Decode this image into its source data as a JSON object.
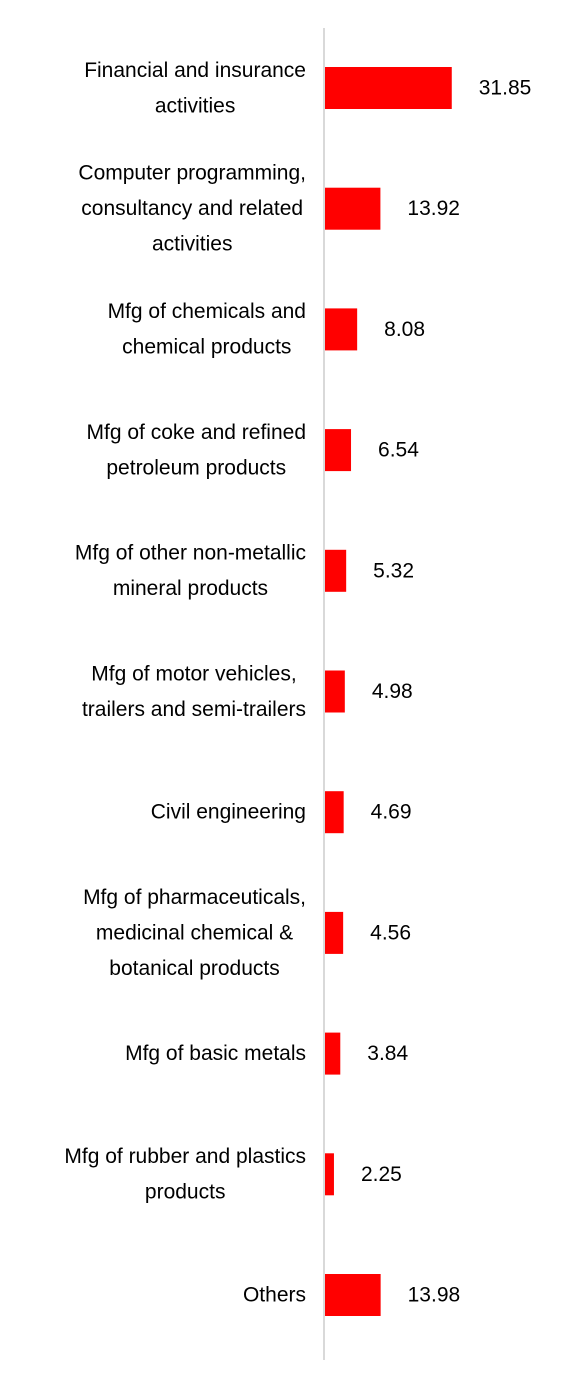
{
  "chart_data": {
    "type": "bar",
    "orientation": "horizontal",
    "title": "",
    "xlabel": "",
    "ylabel": "",
    "grid": false,
    "legend": "none",
    "bar_color": "#ff0000",
    "axis_color": "#d9d9d9",
    "xlim": [
      0,
      32
    ],
    "categories": [
      [
        "Financial and insurance",
        "activities"
      ],
      [
        "Computer programming,",
        "consultancy and related",
        "activities"
      ],
      [
        "Mfg of chemicals and",
        "chemical products"
      ],
      [
        "Mfg of coke and refined",
        "petroleum products"
      ],
      [
        "Mfg of other non-metallic",
        "mineral products"
      ],
      [
        "Mfg of motor vehicles,",
        "trailers and semi-trailers"
      ],
      [
        "Civil engineering"
      ],
      [
        "Mfg of pharmaceuticals,",
        "medicinal chemical &",
        "botanical products"
      ],
      [
        "Mfg of basic metals"
      ],
      [
        "Mfg of rubber and plastics",
        "products"
      ],
      [
        "Others"
      ]
    ],
    "values": [
      31.85,
      13.92,
      8.08,
      6.54,
      5.32,
      4.98,
      4.69,
      4.56,
      3.84,
      2.25,
      13.98
    ],
    "value_labels": [
      "31.85",
      "13.92",
      "8.08",
      "6.54",
      "5.32",
      "4.98",
      "4.69",
      "4.56",
      "3.84",
      "2.25",
      "13.98"
    ]
  }
}
